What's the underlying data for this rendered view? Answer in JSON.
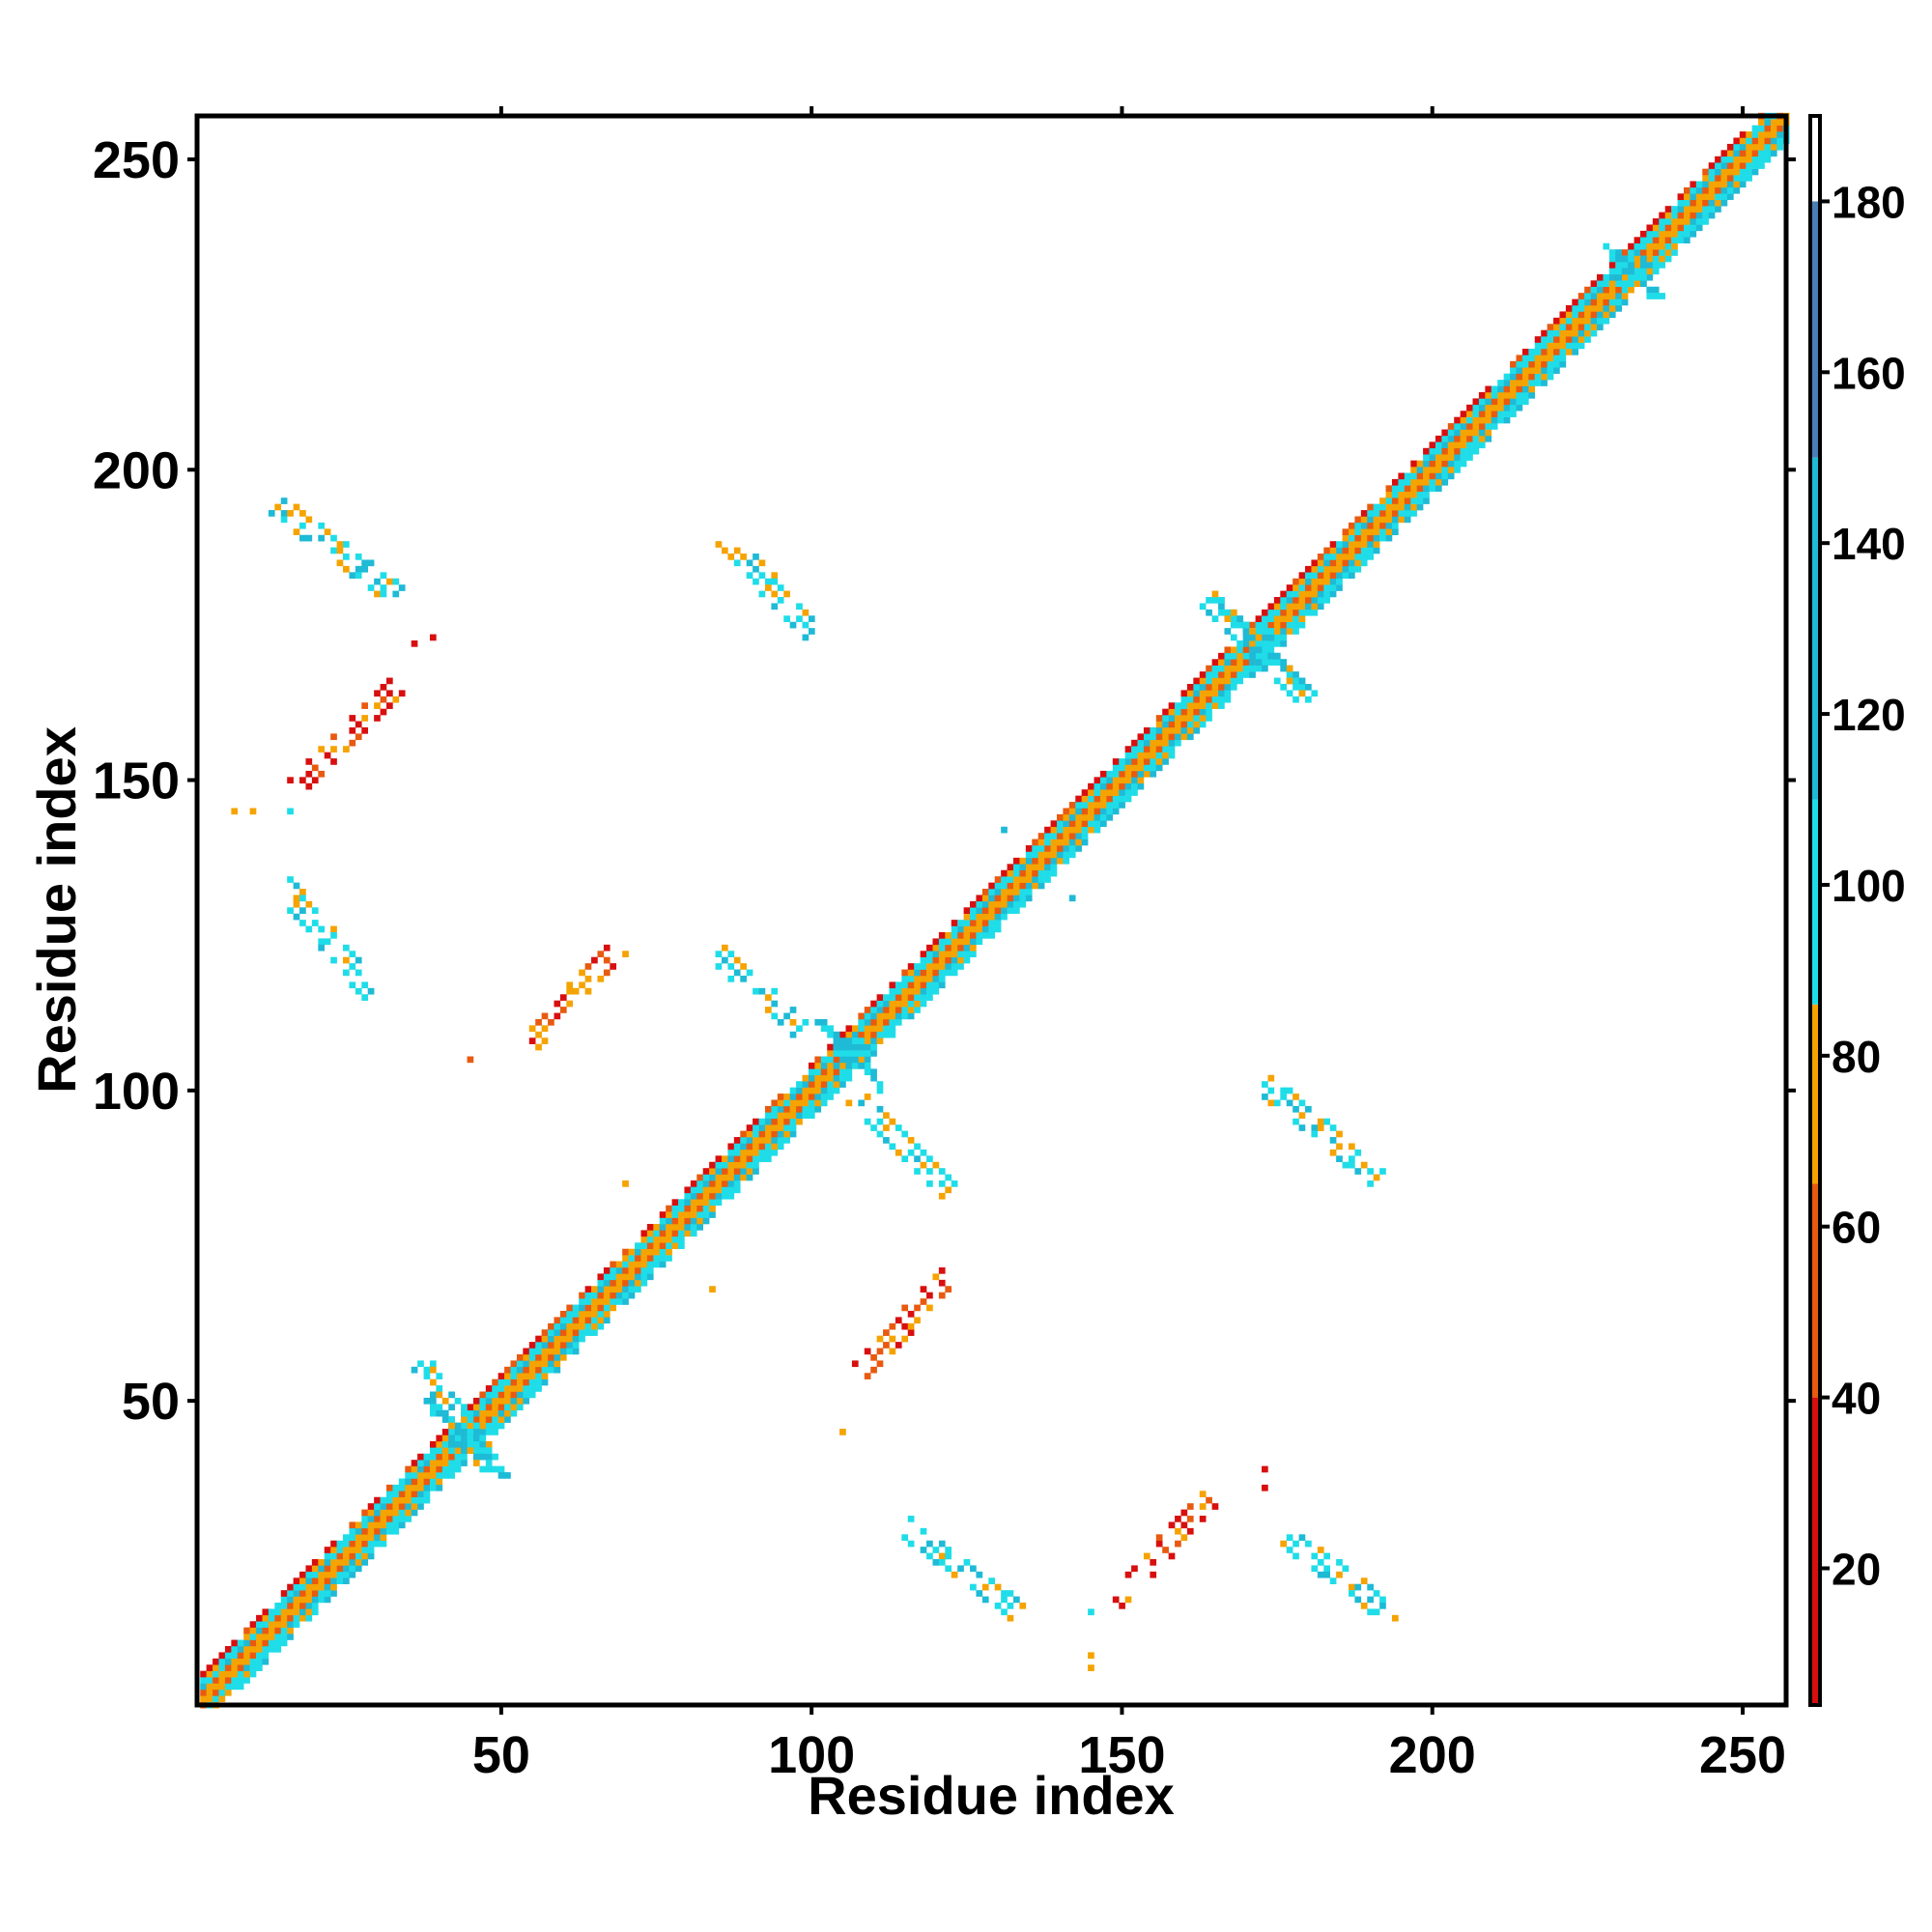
{
  "chart_data": {
    "type": "heatmap",
    "title": "",
    "xlabel": "Residue index",
    "ylabel": "Residue index",
    "xlim": [
      1,
      257
    ],
    "ylim": [
      1,
      257
    ],
    "x_ticks": [
      50,
      100,
      150,
      200,
      250
    ],
    "y_ticks": [
      50,
      100,
      150,
      200,
      250
    ],
    "colorbar": {
      "ticks": [
        20,
        40,
        60,
        80,
        100,
        120,
        140,
        160,
        180
      ],
      "range": [
        4,
        190
      ],
      "bands": [
        {
          "from": 4,
          "to": 40,
          "color": "#d80f0f"
        },
        {
          "from": 40,
          "to": 65,
          "color": "#e85a10"
        },
        {
          "from": 65,
          "to": 86,
          "color": "#f5a300"
        },
        {
          "from": 86,
          "to": 110,
          "color": "#1fdde8"
        },
        {
          "from": 110,
          "to": 150,
          "color": "#1ebad6"
        },
        {
          "from": 150,
          "to": 180,
          "color": "#4a7fb6"
        },
        {
          "from": 180,
          "to": 190,
          "color": "#ffffff"
        }
      ]
    },
    "colors": {
      "red": "#d80f0f",
      "darkorange": "#e85a10",
      "orange": "#f5a300",
      "cyan": "#1fdde8",
      "teal": "#1ebad6",
      "steelblue": "#4a7fb6"
    },
    "diagonal": {
      "from": 2,
      "to": 257,
      "half_width": 4
    },
    "diagonal_blobs": [
      {
        "center": 44,
        "size": 6
      },
      {
        "center": 106,
        "size": 5
      },
      {
        "center": 172,
        "size": 7
      },
      {
        "center": 232,
        "size": 4
      }
    ],
    "contact_segments": [
      {
        "from": [
          14,
          194
        ],
        "to": [
          33,
          180
        ],
        "kind": "anti"
      },
      {
        "from": [
          17,
          149
        ],
        "to": [
          33,
          165
        ],
        "kind": "parallel"
      },
      {
        "from": [
          15,
          133
        ],
        "to": [
          29,
          116
        ],
        "kind": "anti"
      },
      {
        "from": [
          55,
          108
        ],
        "to": [
          69,
          123
        ],
        "kind": "parallel"
      },
      {
        "from": [
          85,
          122
        ],
        "to": [
          98,
          110
        ],
        "kind": "anti"
      },
      {
        "from": [
          86,
          189
        ],
        "to": [
          100,
          174
        ],
        "kind": "anti"
      },
      {
        "from": [
          107,
          99
        ],
        "to": [
          122,
          84
        ],
        "kind": "anti"
      },
      {
        "from": [
          108,
          55
        ],
        "to": [
          122,
          70
        ],
        "kind": "parallel"
      },
      {
        "from": [
          115,
          30
        ],
        "to": [
          133,
          16
        ],
        "kind": "anti"
      },
      {
        "from": [
          149,
          18
        ],
        "to": [
          164,
          34
        ],
        "kind": "parallel"
      },
      {
        "from": [
          173,
          101
        ],
        "to": [
          191,
          86
        ],
        "kind": "anti"
      },
      {
        "from": [
          177,
          28
        ],
        "to": [
          194,
          15
        ],
        "kind": "anti"
      },
      {
        "from": [
          37,
          56
        ],
        "to": [
          48,
          40
        ],
        "kind": "anti"
      },
      {
        "from": [
          163,
          180
        ],
        "to": [
          180,
          163
        ],
        "kind": "anti"
      }
    ],
    "isolated_points": [
      {
        "x": 7,
        "y": 145,
        "band": 2
      },
      {
        "x": 10,
        "y": 145,
        "band": 2
      },
      {
        "x": 16,
        "y": 145,
        "band": 3
      },
      {
        "x": 36,
        "y": 172,
        "band": 0
      },
      {
        "x": 39,
        "y": 173,
        "band": 0
      },
      {
        "x": 45,
        "y": 105,
        "band": 1
      },
      {
        "x": 105,
        "y": 45,
        "band": 2
      },
      {
        "x": 145,
        "y": 16,
        "band": 3
      },
      {
        "x": 145,
        "y": 7,
        "band": 2
      },
      {
        "x": 145,
        "y": 9,
        "band": 2
      },
      {
        "x": 173,
        "y": 39,
        "band": 0
      },
      {
        "x": 173,
        "y": 36,
        "band": 0
      },
      {
        "x": 131,
        "y": 142,
        "band": 4
      },
      {
        "x": 142,
        "y": 131,
        "band": 4
      },
      {
        "x": 70,
        "y": 85,
        "band": 2
      },
      {
        "x": 84,
        "y": 68,
        "band": 2
      }
    ]
  }
}
